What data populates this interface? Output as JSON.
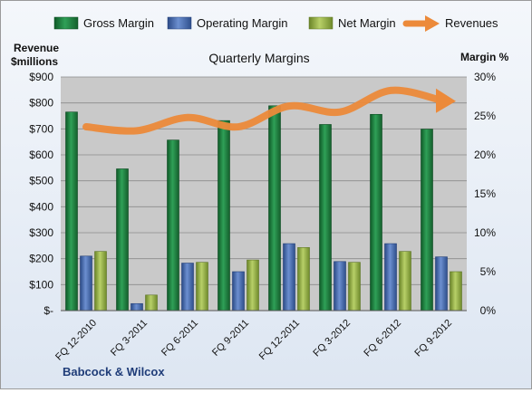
{
  "chart_data": {
    "type": "bar",
    "title": "Quarterly Margins",
    "categories": [
      "FQ 12-2010",
      "FQ 3-2011",
      "FQ 6-2011",
      "FQ 9-2011",
      "FQ 12-2011",
      "FQ 3-2012",
      "FQ 6-2012",
      "FQ 9-2012"
    ],
    "series": [
      {
        "name": "Gross Margin",
        "axis": "right",
        "unit": "percent",
        "values": [
          25.5,
          18.2,
          21.9,
          24.4,
          26.3,
          23.9,
          25.2,
          23.3
        ]
      },
      {
        "name": "Operating Margin",
        "axis": "right",
        "unit": "percent",
        "values": [
          7.0,
          0.9,
          6.1,
          5.0,
          8.6,
          6.3,
          8.6,
          6.9
        ]
      },
      {
        "name": "Net Margin",
        "axis": "right",
        "unit": "percent",
        "values": [
          7.6,
          2.0,
          6.2,
          6.5,
          8.1,
          6.2,
          7.6,
          5.0
        ]
      },
      {
        "name": "Revenues",
        "type": "line",
        "axis": "left",
        "unit": "$millions",
        "values": [
          708,
          693,
          744,
          708,
          788,
          765,
          848,
          810
        ]
      }
    ],
    "left_axis": {
      "label_line1": "Revenue",
      "label_line2": "$millions",
      "range": [
        0,
        900
      ],
      "ticks": [
        "$-",
        "$100",
        "$200",
        "$300",
        "$400",
        "$500",
        "$600",
        "$700",
        "$800",
        "$900"
      ]
    },
    "right_axis": {
      "label": "Margin %",
      "range": [
        0,
        30
      ],
      "ticks": [
        "0%",
        "5%",
        "10%",
        "15%",
        "20%",
        "25%",
        "30%"
      ]
    },
    "legend_position": "top",
    "grid": true,
    "footer": "Babcock & Wilcox",
    "colors": {
      "gross": "#1e7a3c",
      "operating": "#3f63a8",
      "net": "#8fac3c",
      "revenues": "#ec8a3a",
      "plot_bg": "#c8c8c8",
      "footer_text": "#1f3c78"
    }
  }
}
